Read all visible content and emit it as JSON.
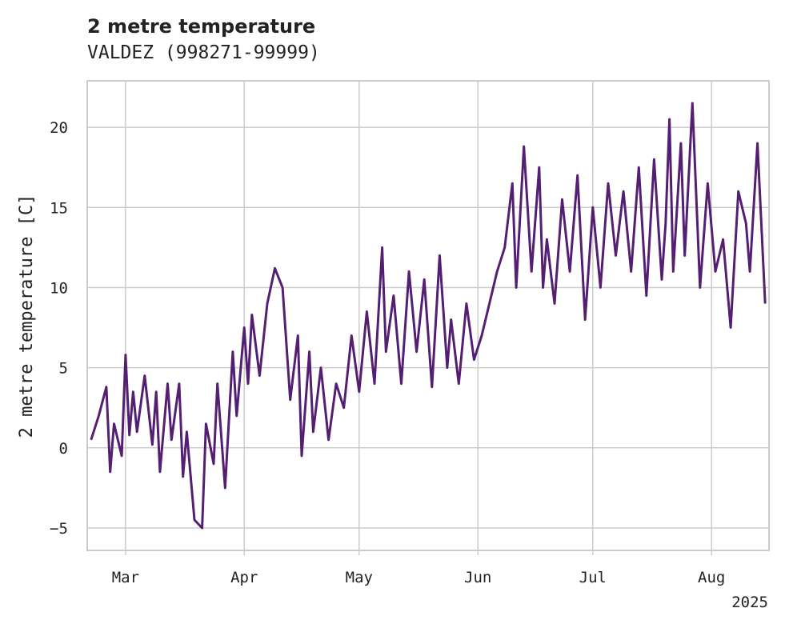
{
  "chart_data": {
    "type": "line",
    "title": "2 metre temperature",
    "subtitle": "VALDEZ (998271-99999)",
    "xlabel": "",
    "ylabel": "2 metre temperature [C]",
    "x_range": [
      "2025-02-19",
      "2025-08-16"
    ],
    "ylim": [
      -6.4,
      22.9
    ],
    "yticks": [
      -5,
      0,
      5,
      10,
      15,
      20
    ],
    "ytick_labels": [
      "−5",
      "0",
      "5",
      "10",
      "15",
      "20"
    ],
    "xticks": [
      "2025-03-01",
      "2025-04-01",
      "2025-05-01",
      "2025-06-01",
      "2025-07-01",
      "2025-08-01"
    ],
    "xtick_labels": [
      "Mar",
      "Apr",
      "May",
      "Jun",
      "Jul",
      "Aug"
    ],
    "x_offset_label": "2025",
    "grid": true,
    "legend": "none",
    "series": [
      {
        "color": "#541f72",
        "x": [
          "2025-02-20",
          "2025-02-22",
          "2025-02-24",
          "2025-02-25",
          "2025-02-26",
          "2025-02-28",
          "2025-03-01",
          "2025-03-02",
          "2025-03-03",
          "2025-03-04",
          "2025-03-06",
          "2025-03-08",
          "2025-03-09",
          "2025-03-10",
          "2025-03-12",
          "2025-03-13",
          "2025-03-15",
          "2025-03-16",
          "2025-03-17",
          "2025-03-19",
          "2025-03-21",
          "2025-03-22",
          "2025-03-24",
          "2025-03-25",
          "2025-03-27",
          "2025-03-29",
          "2025-03-30",
          "2025-04-01",
          "2025-04-02",
          "2025-04-03",
          "2025-04-05",
          "2025-04-07",
          "2025-04-09",
          "2025-04-11",
          "2025-04-13",
          "2025-04-15",
          "2025-04-16",
          "2025-04-18",
          "2025-04-19",
          "2025-04-21",
          "2025-04-23",
          "2025-04-25",
          "2025-04-27",
          "2025-04-29",
          "2025-05-01",
          "2025-05-03",
          "2025-05-05",
          "2025-05-07",
          "2025-05-08",
          "2025-05-10",
          "2025-05-12",
          "2025-05-14",
          "2025-05-16",
          "2025-05-18",
          "2025-05-20",
          "2025-05-22",
          "2025-05-24",
          "2025-05-25",
          "2025-05-27",
          "2025-05-29",
          "2025-05-31",
          "2025-06-02",
          "2025-06-04",
          "2025-06-06",
          "2025-06-08",
          "2025-06-10",
          "2025-06-11",
          "2025-06-13",
          "2025-06-15",
          "2025-06-17",
          "2025-06-18",
          "2025-06-19",
          "2025-06-21",
          "2025-06-23",
          "2025-06-25",
          "2025-06-27",
          "2025-06-29",
          "2025-07-01",
          "2025-07-03",
          "2025-07-05",
          "2025-07-07",
          "2025-07-09",
          "2025-07-11",
          "2025-07-13",
          "2025-07-15",
          "2025-07-17",
          "2025-07-19",
          "2025-07-20",
          "2025-07-21",
          "2025-07-22",
          "2025-07-24",
          "2025-07-25",
          "2025-07-27",
          "2025-07-29",
          "2025-07-31",
          "2025-08-02",
          "2025-08-04",
          "2025-08-06",
          "2025-08-08",
          "2025-08-10",
          "2025-08-11",
          "2025-08-13",
          "2025-08-15"
        ],
        "y": [
          0.5,
          2.0,
          3.8,
          -1.5,
          1.5,
          -0.5,
          5.8,
          0.8,
          3.5,
          1.0,
          4.5,
          0.2,
          3.5,
          -1.5,
          4.0,
          0.5,
          4.0,
          -1.8,
          1.0,
          -4.5,
          -5.0,
          1.5,
          -1.0,
          4.0,
          -2.5,
          6.0,
          2.0,
          7.5,
          4.0,
          8.3,
          4.5,
          9.0,
          11.2,
          10.0,
          3.0,
          7.0,
          -0.5,
          6.0,
          1.0,
          5.0,
          0.5,
          4.0,
          2.5,
          7.0,
          3.5,
          8.5,
          4.0,
          12.5,
          6.0,
          9.5,
          4.0,
          11.0,
          6.0,
          10.5,
          3.8,
          12.0,
          5.0,
          8.0,
          4.0,
          9.0,
          5.5,
          7.0,
          9.0,
          11.0,
          12.5,
          16.5,
          10.0,
          18.8,
          11.0,
          17.5,
          10.0,
          13.0,
          9.0,
          15.5,
          11.0,
          17.0,
          8.0,
          15.0,
          10.0,
          16.5,
          12.0,
          16.0,
          11.0,
          17.5,
          9.5,
          18.0,
          10.5,
          14.0,
          20.5,
          11.0,
          19.0,
          12.0,
          21.5,
          10.0,
          16.5,
          11.0,
          13.0,
          7.5,
          16.0,
          14.0,
          11.0,
          19.0,
          9.0
        ]
      }
    ]
  }
}
